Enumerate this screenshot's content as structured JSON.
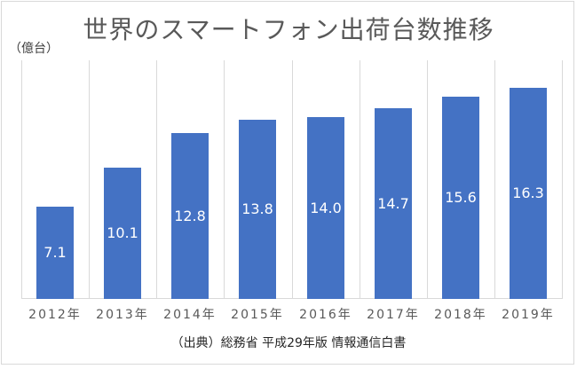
{
  "chart_data": {
    "type": "bar",
    "title": "世界のスマートフォン出荷台数推移",
    "xlabel": "",
    "ylabel": "（億台）",
    "categories": [
      "2012年",
      "2013年",
      "2014年",
      "2015年",
      "2016年",
      "2017年",
      "2018年",
      "2019年"
    ],
    "values": [
      7.1,
      10.1,
      12.8,
      13.8,
      14.0,
      14.7,
      15.6,
      16.3
    ],
    "value_labels": [
      "7.1",
      "10.1",
      "12.8",
      "13.8",
      "14.0",
      "14.7",
      "15.6",
      "16.3"
    ],
    "ylim": [
      0,
      18.4
    ],
    "grid": "vertical category separators",
    "legend": "none",
    "bar_color": "#4472c4",
    "annotation": "（出典）総務省  平成29年版  情報通信白書"
  },
  "header": {
    "title": "世界のスマートフォン出荷台数推移",
    "unit": "（億台）"
  },
  "footer": {
    "source": "（出典）総務省  平成29年版  情報通信白書"
  }
}
